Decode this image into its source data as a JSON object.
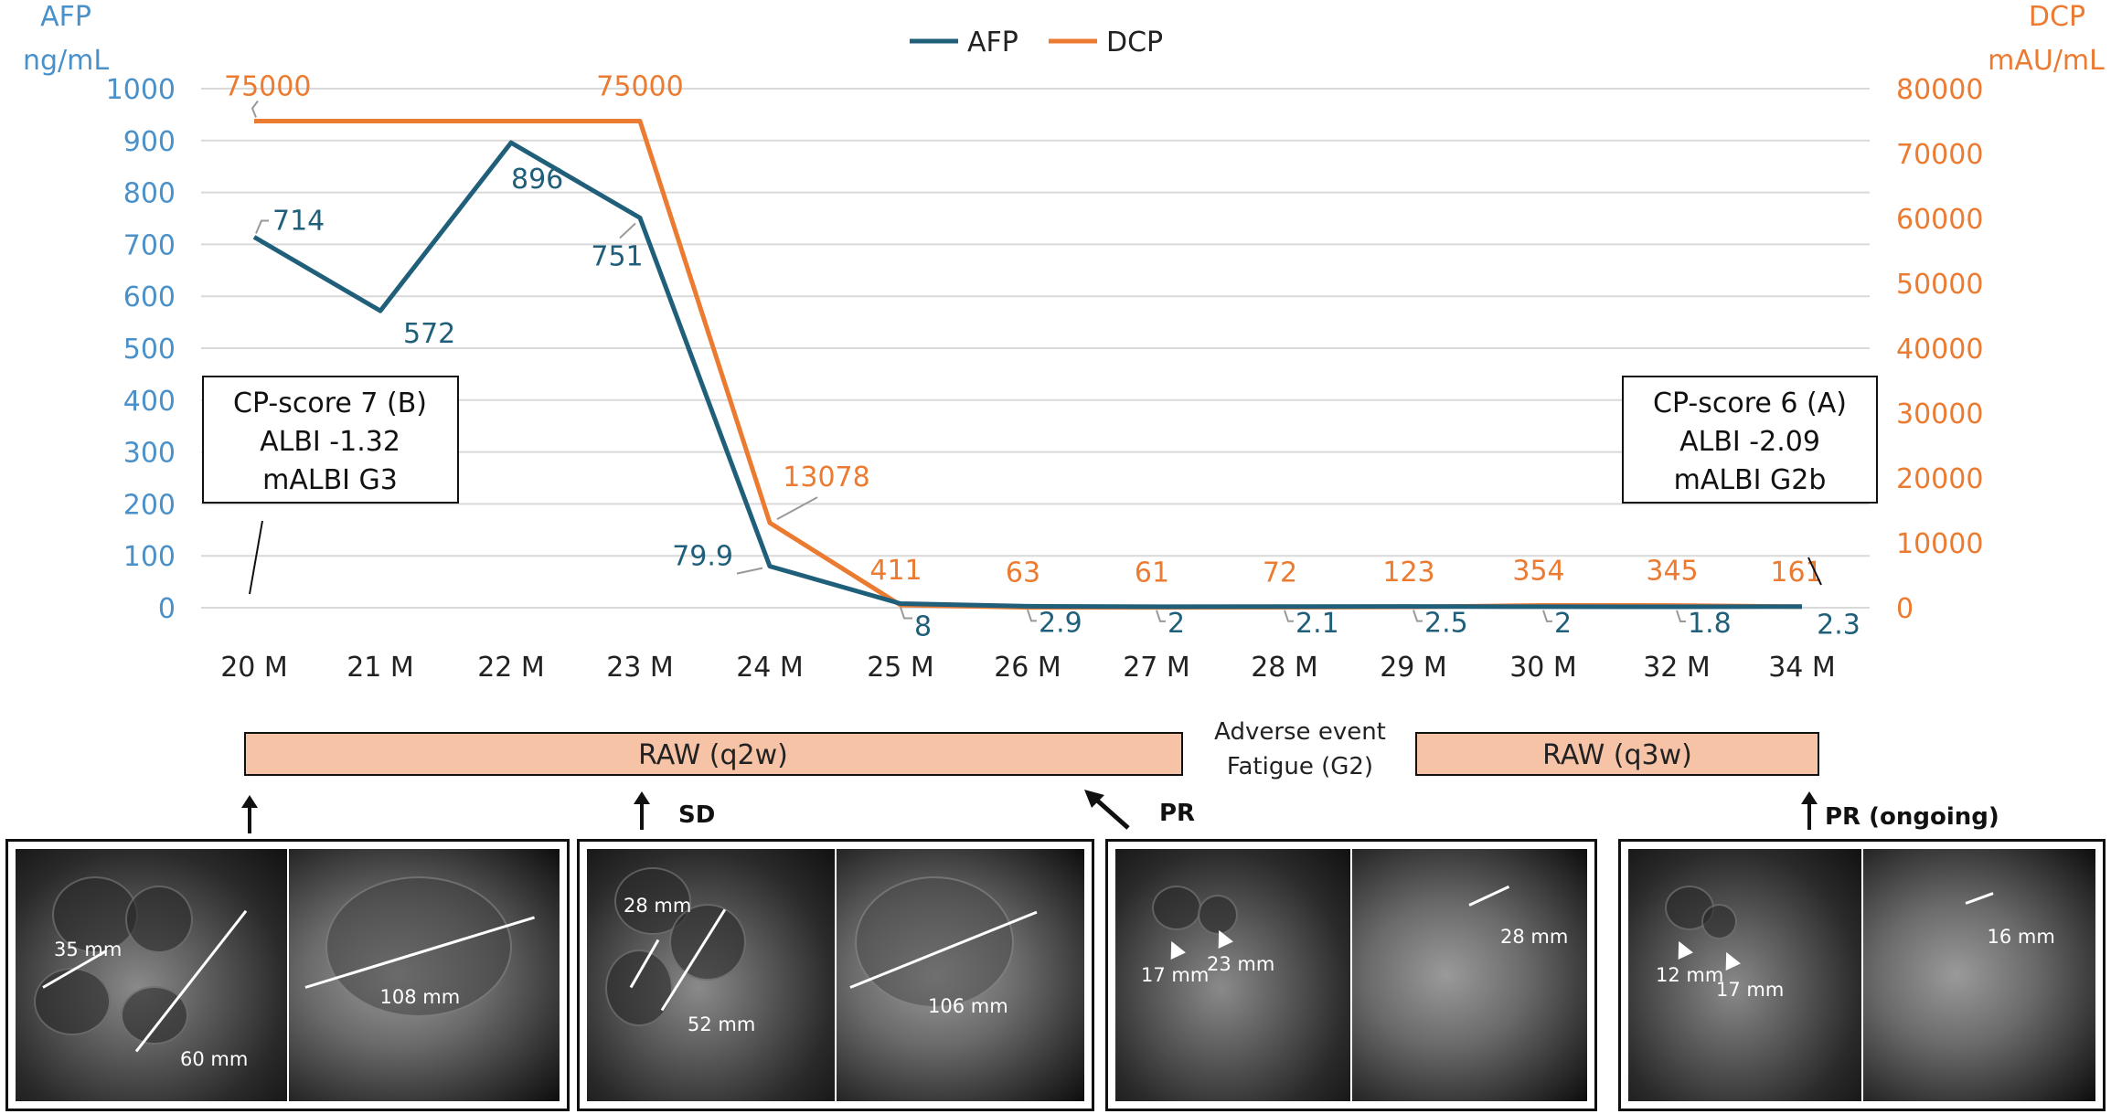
{
  "chart_data": {
    "type": "line",
    "categories": [
      "20 M",
      "21 M",
      "22 M",
      "23 M",
      "24 M",
      "25 M",
      "26 M",
      "27 M",
      "28 M",
      "29 M",
      "30 M",
      "32 M",
      "34 M"
    ],
    "legend_position": "top-center",
    "grid": true,
    "y_left": {
      "label_line1": "AFP",
      "label_line2": "ng/mL",
      "range": [
        0,
        1000
      ],
      "ticks": [
        "0",
        "100",
        "200",
        "300",
        "400",
        "500",
        "600",
        "700",
        "800",
        "900",
        "1000"
      ]
    },
    "y_right": {
      "label_line1": "DCP",
      "label_line2": "mAU/mL",
      "range": [
        0,
        80000
      ],
      "ticks": [
        "0",
        "10000",
        "20000",
        "30000",
        "40000",
        "50000",
        "60000",
        "70000",
        "80000"
      ]
    },
    "series": [
      {
        "name": "AFP",
        "axis": "left",
        "color": "#1f5f7a",
        "values": [
          714,
          572,
          896,
          751,
          79.9,
          8,
          2.9,
          2,
          2.1,
          2.5,
          2,
          1.8,
          2.3
        ],
        "labels": [
          "714",
          "572",
          "896",
          "751",
          "79.9",
          "8",
          "2.9",
          "2",
          "2.1",
          "2.5",
          "2",
          "1.8",
          "2.3"
        ]
      },
      {
        "name": "DCP",
        "axis": "right",
        "color": "#ec7b32",
        "values": [
          75000,
          75000,
          75000,
          75000,
          13078,
          411,
          63,
          61,
          72,
          123,
          354,
          345,
          161
        ],
        "labels": [
          "75000",
          "",
          "",
          "75000",
          "13078",
          "411",
          "63",
          "61",
          "72",
          "123",
          "354",
          "345",
          "161"
        ]
      }
    ],
    "annotations": {
      "box_left": [
        "CP-score 7 (B)",
        "ALBI -1.32",
        "mALBI G3"
      ],
      "box_right": [
        "CP-score 6 (A)",
        "ALBI -2.09",
        "mALBI G2b"
      ],
      "treatment_1": "RAW (q2w)",
      "treatment_2": "RAW (q3w)",
      "adverse_event": [
        "Adverse event",
        "Fatigue (G2)"
      ],
      "response_sd": "SD",
      "response_pr": "PR",
      "response_pr_ongoing": "PR (ongoing)"
    },
    "colors": {
      "afp_axis": "#4a90c9",
      "dcp_axis": "#ec7b32",
      "treatment_bar": "#f7c3a6"
    }
  },
  "scans": [
    {
      "measurements": {
        "a": "35 mm",
        "b": "60 mm",
        "c": "108 mm"
      }
    },
    {
      "measurements": {
        "a": "28 mm",
        "b": "52 mm",
        "c": "106 mm"
      }
    },
    {
      "measurements": {
        "a": "17 mm",
        "b": "23 mm",
        "c": "28 mm"
      }
    },
    {
      "measurements": {
        "a": "12 mm",
        "b": "17 mm",
        "c": "16 mm"
      }
    }
  ]
}
